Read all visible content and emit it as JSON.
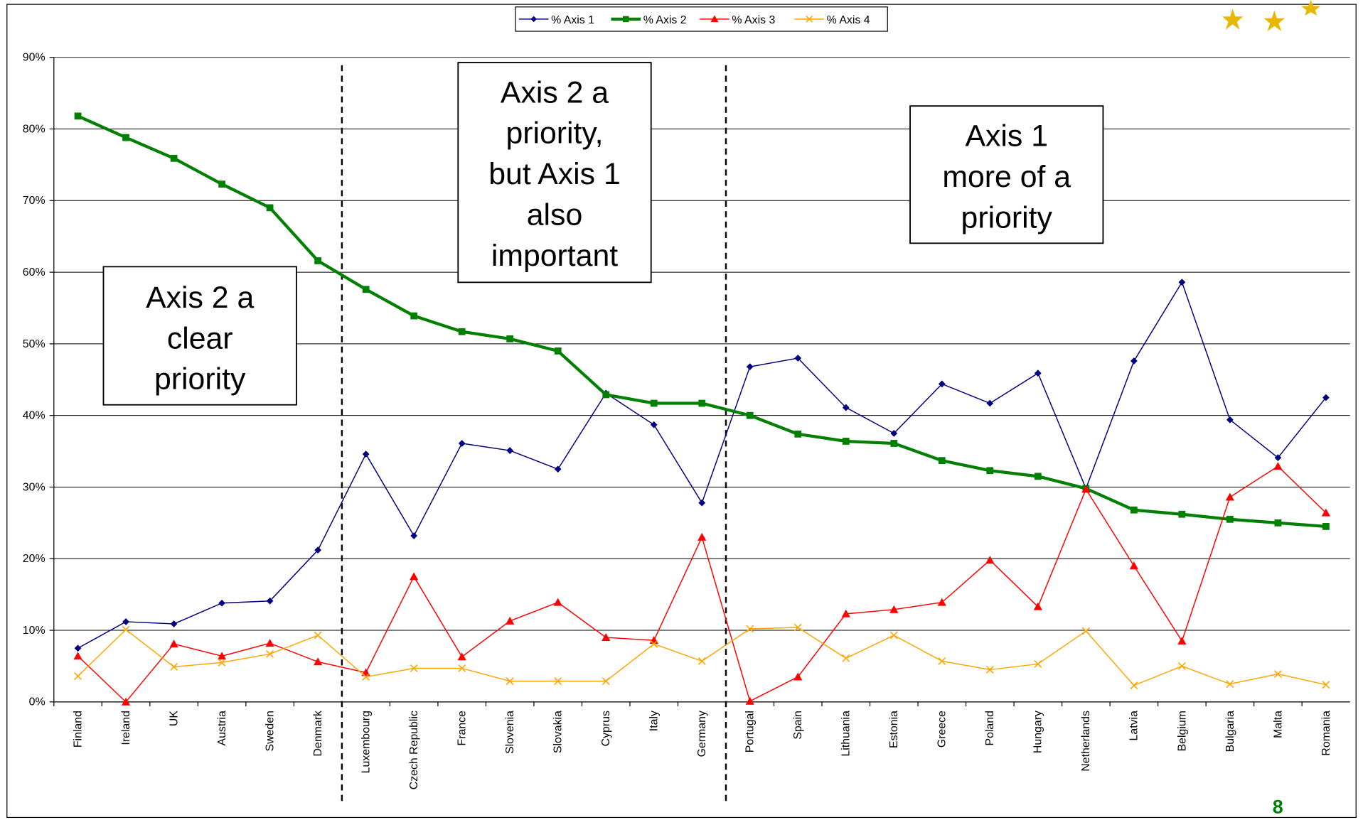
{
  "chart_data": {
    "type": "line",
    "categories": [
      "Finland",
      "Ireland",
      "UK",
      "Austria",
      "Sweden",
      "Denmark",
      "Luxembourg",
      "Czech Republic",
      "France",
      "Slovenia",
      "Slovakia",
      "Cyprus",
      "Italy",
      "Germany",
      "Portugal",
      "Spain",
      "Lithuania",
      "Estonia",
      "Greece",
      "Poland",
      "Hungary",
      "Netherlands",
      "Latvia",
      "Belgium",
      "Bulgaria",
      "Malta",
      "Romania"
    ],
    "series": [
      {
        "name": "% Axis 1",
        "color": "#000080",
        "marker": "diamond",
        "values": [
          7.5,
          11.2,
          10.9,
          13.8,
          14.1,
          21.2,
          34.6,
          23.2,
          36.1,
          35.1,
          32.5,
          43.1,
          38.7,
          27.8,
          46.8,
          48.0,
          41.1,
          37.5,
          44.4,
          41.7,
          45.9,
          29.8,
          47.6,
          58.6,
          39.4,
          34.1,
          42.5
        ]
      },
      {
        "name": "% Axis 2",
        "color": "#008000",
        "marker": "square",
        "values": [
          81.8,
          78.8,
          75.9,
          72.3,
          69.0,
          61.6,
          57.6,
          53.9,
          51.7,
          50.7,
          49.0,
          42.9,
          41.7,
          41.7,
          40.0,
          37.4,
          36.4,
          36.1,
          33.7,
          32.3,
          31.5,
          29.8,
          26.8,
          26.2,
          25.5,
          25.0,
          24.5
        ]
      },
      {
        "name": "% Axis 3",
        "color": "#FF0000",
        "marker": "triangle",
        "values": [
          6.4,
          0,
          8.1,
          6.4,
          8.2,
          5.6,
          4.1,
          17.5,
          6.3,
          11.3,
          13.9,
          9.0,
          8.6,
          23.0,
          0.1,
          3.5,
          12.3,
          12.9,
          13.9,
          19.8,
          13.3,
          29.7,
          19.0,
          8.5,
          28.6,
          32.9,
          26.4
        ]
      },
      {
        "name": "% Axis 4",
        "color": "#FFA500",
        "marker": "x",
        "values": [
          3.6,
          10.1,
          4.9,
          5.5,
          6.7,
          9.3,
          3.5,
          4.7,
          4.7,
          2.9,
          2.9,
          2.9,
          8.1,
          5.7,
          10.2,
          10.4,
          6.1,
          9.3,
          5.7,
          4.5,
          5.3,
          9.9,
          2.3,
          5.0,
          2.5,
          3.9,
          2.4
        ]
      }
    ],
    "ylim": [
      0,
      90
    ],
    "yticks": [
      {
        "value": 0,
        "label": "0%"
      },
      {
        "value": 10,
        "label": "10%"
      },
      {
        "value": 20,
        "label": "20%"
      },
      {
        "value": 30,
        "label": "30%"
      },
      {
        "value": 40,
        "label": "40%"
      },
      {
        "value": 50,
        "label": "50%"
      },
      {
        "value": 60,
        "label": "60%"
      },
      {
        "value": 70,
        "label": "70%"
      },
      {
        "value": 80,
        "label": "80%"
      },
      {
        "value": 90,
        "label": "90%"
      }
    ],
    "grid": true,
    "legend": "top",
    "annotations": [
      {
        "lines": [
          "Axis 2 a",
          "clear",
          "priority"
        ]
      },
      {
        "lines": [
          "Axis 2 a",
          "priority,",
          "but Axis 1",
          "also",
          "important"
        ]
      },
      {
        "lines": [
          "Axis 1",
          "more of a",
          "priority"
        ]
      }
    ],
    "page_number": "8"
  }
}
